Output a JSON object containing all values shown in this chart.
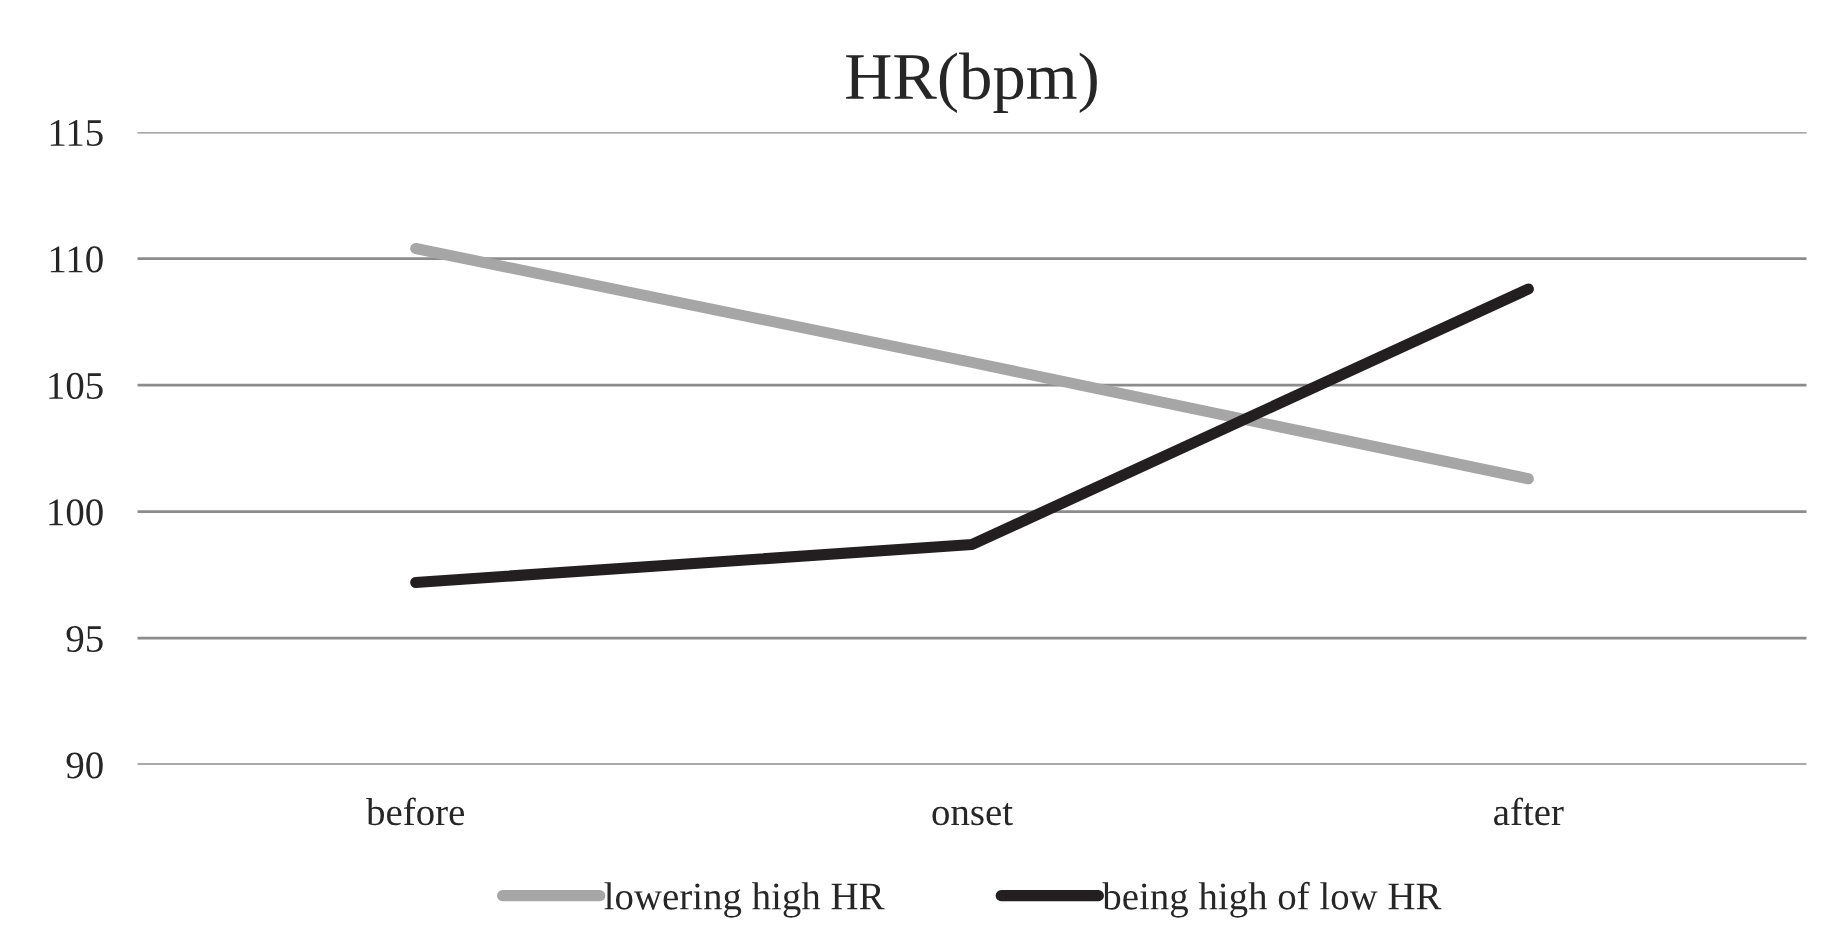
{
  "chart_data": {
    "type": "line",
    "title": "HR(bpm)",
    "categories": [
      "before",
      "onset",
      "after"
    ],
    "series": [
      {
        "name": "lowering high HR",
        "color": "#a6a6a6",
        "values": [
          110.4,
          105.9,
          101.3
        ]
      },
      {
        "name": "being high of low HR",
        "color": "#231f20",
        "values": [
          97.2,
          98.7,
          108.8
        ]
      }
    ],
    "ylim": [
      90,
      115
    ],
    "yticks": [
      90,
      95,
      100,
      105,
      110,
      115
    ],
    "grid": "y",
    "legend": "bottom",
    "marker": "none",
    "line_style": "solid"
  }
}
